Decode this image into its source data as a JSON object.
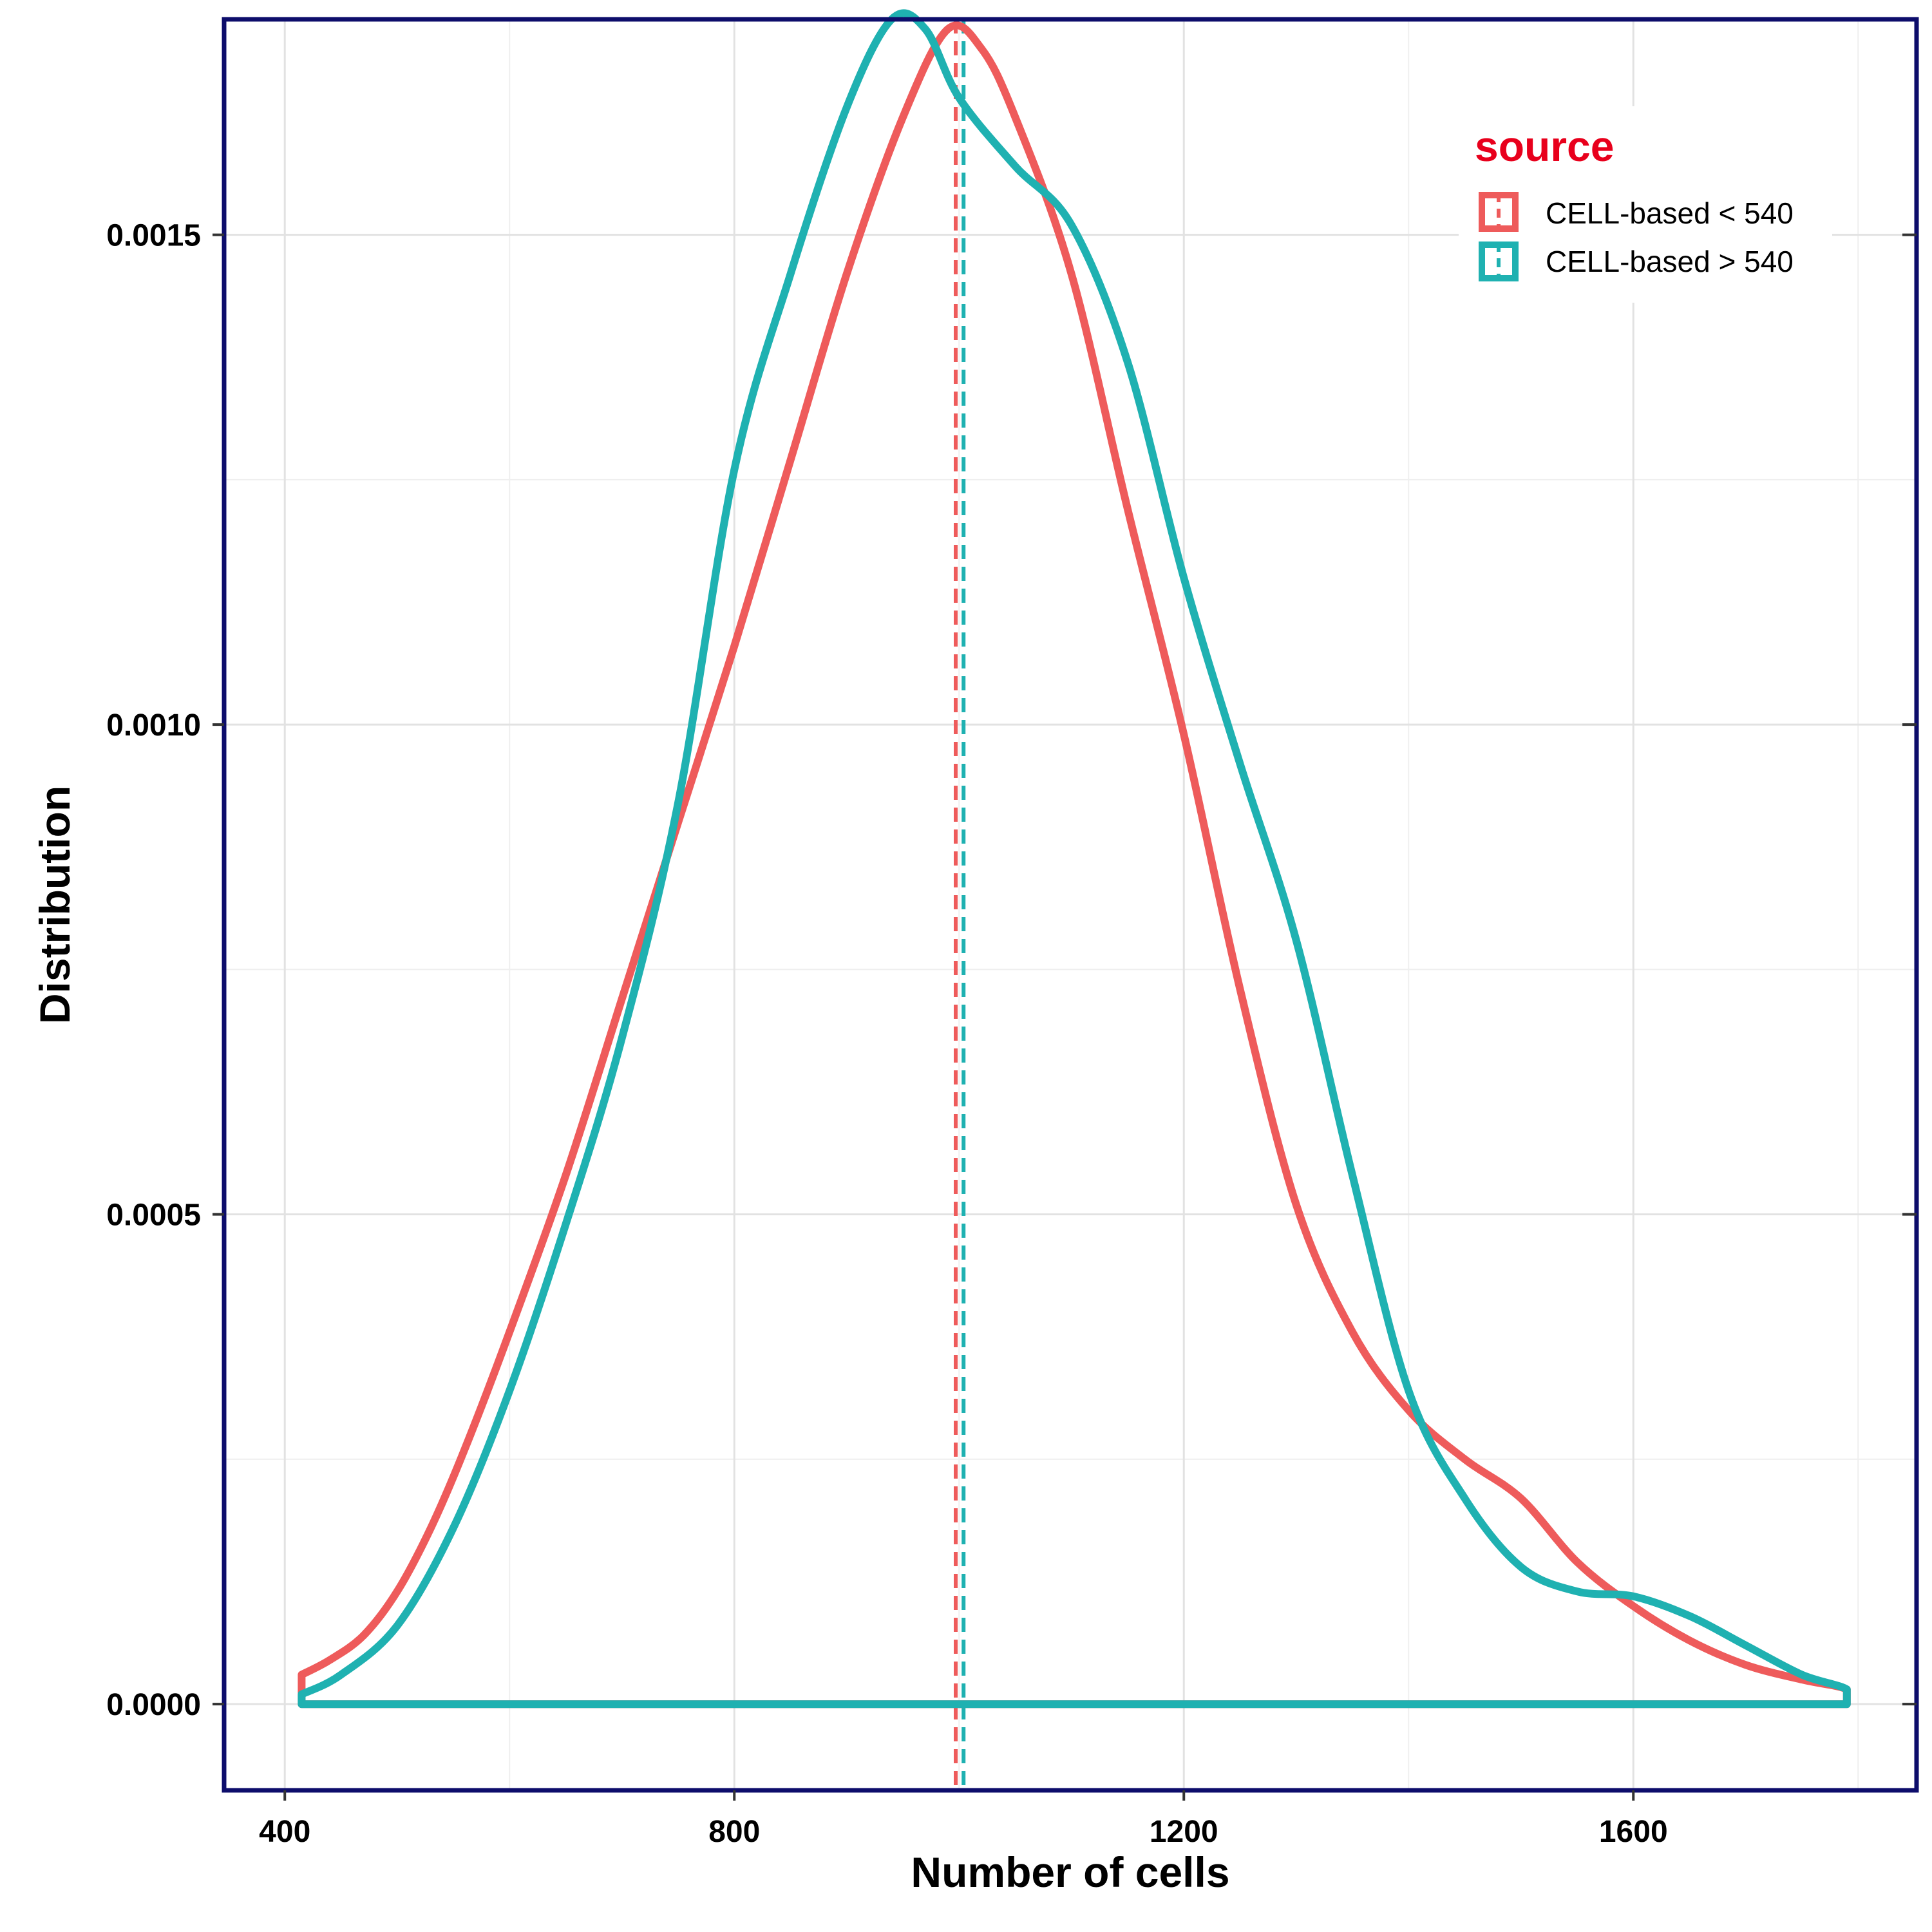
{
  "chart_data": {
    "type": "line",
    "xlabel": "Number of cells",
    "ylabel": "Distribution",
    "xlim": [
      346,
      1852
    ],
    "ylim": [
      -8.8e-05,
      0.00172
    ],
    "x_ticks": [
      400,
      800,
      1200,
      1600
    ],
    "x_tick_labels": [
      "400",
      "800",
      "1200",
      "1600"
    ],
    "y_ticks": [
      0.0,
      0.0005,
      0.001,
      0.0015
    ],
    "y_tick_labels": [
      "0.0000",
      "0.0005",
      "0.0010",
      "0.0015"
    ],
    "grid": true,
    "legend": {
      "title": "source",
      "title_color": "#e8001c",
      "position": "top-right"
    },
    "series": [
      {
        "name": "CELL-based < 540",
        "color": "#ee5b5b",
        "mean": 997,
        "points": [
          [
            415,
            3e-05
          ],
          [
            440,
            4.5e-05
          ],
          [
            470,
            7e-05
          ],
          [
            500,
            0.000115
          ],
          [
            530,
            0.00018
          ],
          [
            560,
            0.00026
          ],
          [
            600,
            0.00038
          ],
          [
            650,
            0.00054
          ],
          [
            700,
            0.00072
          ],
          [
            750,
            0.0009
          ],
          [
            800,
            0.00108
          ],
          [
            850,
            0.00127
          ],
          [
            900,
            0.00146
          ],
          [
            950,
            0.00162
          ],
          [
            990,
            0.00171
          ],
          [
            1020,
            0.00169
          ],
          [
            1050,
            0.00162
          ],
          [
            1100,
            0.00146
          ],
          [
            1150,
            0.00122
          ],
          [
            1200,
            0.00099
          ],
          [
            1250,
            0.00073
          ],
          [
            1300,
            0.00051
          ],
          [
            1350,
            0.00038
          ],
          [
            1400,
            0.0003
          ],
          [
            1450,
            0.00025
          ],
          [
            1500,
            0.00021
          ],
          [
            1550,
            0.000145
          ],
          [
            1600,
            0.0001
          ],
          [
            1650,
            6.5e-05
          ],
          [
            1700,
            4e-05
          ],
          [
            1750,
            2.5e-05
          ],
          [
            1790,
            1.5e-05
          ],
          [
            1790,
            0.0
          ],
          [
            415,
            0.0
          ],
          [
            415,
            3e-05
          ]
        ]
      },
      {
        "name": "CELL-based > 540",
        "color": "#1fb1b1",
        "mean": 1004,
        "points": [
          [
            415,
            1e-05
          ],
          [
            450,
            3e-05
          ],
          [
            500,
            8e-05
          ],
          [
            550,
            0.00018
          ],
          [
            600,
            0.00032
          ],
          [
            650,
            0.00049
          ],
          [
            700,
            0.00068
          ],
          [
            750,
            0.00092
          ],
          [
            800,
            0.00126
          ],
          [
            850,
            0.00146
          ],
          [
            900,
            0.00163
          ],
          [
            940,
            0.00172
          ],
          [
            970,
            0.00171
          ],
          [
            1000,
            0.00164
          ],
          [
            1050,
            0.00157
          ],
          [
            1100,
            0.00151
          ],
          [
            1150,
            0.00137
          ],
          [
            1200,
            0.00115
          ],
          [
            1250,
            0.00096
          ],
          [
            1300,
            0.00078
          ],
          [
            1350,
            0.00054
          ],
          [
            1400,
            0.00032
          ],
          [
            1450,
            0.00021
          ],
          [
            1500,
            0.00014
          ],
          [
            1550,
            0.000115
          ],
          [
            1600,
            0.00011
          ],
          [
            1650,
            9e-05
          ],
          [
            1700,
            6e-05
          ],
          [
            1750,
            3e-05
          ],
          [
            1790,
            1.5e-05
          ],
          [
            1790,
            0.0
          ],
          [
            415,
            0.0
          ],
          [
            415,
            1e-05
          ]
        ]
      }
    ]
  }
}
